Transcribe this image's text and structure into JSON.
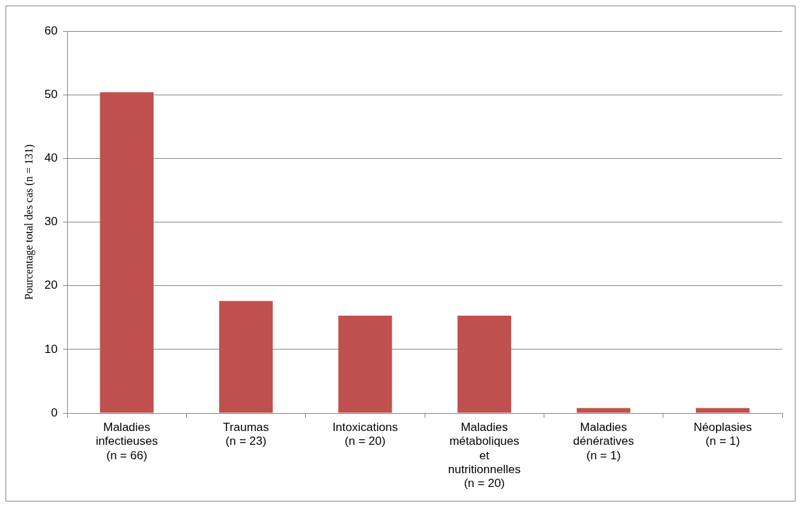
{
  "chart_data": {
    "type": "bar",
    "ylabel": "Pourcentage total des cas (n = 131)",
    "categories": [
      "Maladies\ninfectieuses\n(n = 66)",
      "Traumas\n(n = 23)",
      "Intoxications\n(n = 20)",
      "Maladies\nmétaboliques\net\nnutritionnelles\n(n = 20)",
      "Maladies\ndénératives\n(n = 1)",
      "Néoplasies\n(n = 1)"
    ],
    "values": [
      50.4,
      17.6,
      15.3,
      15.3,
      0.8,
      0.8
    ],
    "color": "#c0504d",
    "ylim": [
      0,
      60
    ],
    "yticks": [
      0,
      10,
      20,
      30,
      40,
      50,
      60
    ],
    "grid": "y",
    "legend": false
  }
}
